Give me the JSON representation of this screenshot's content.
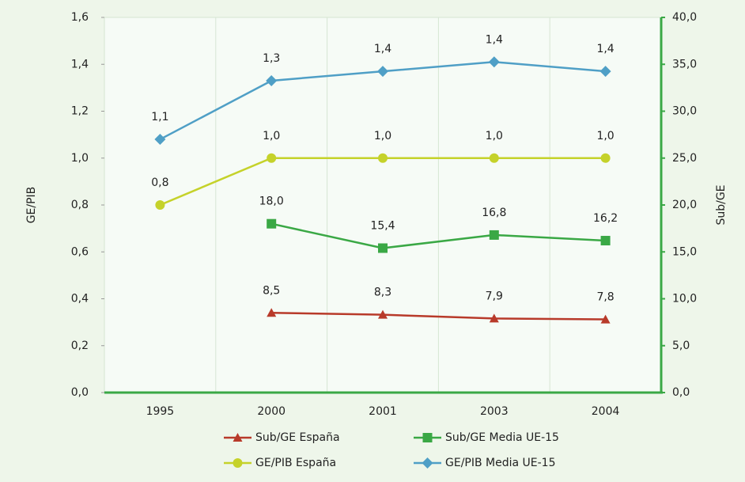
{
  "chart_data": {
    "type": "line",
    "categories": [
      "1995",
      "2000",
      "2001",
      "2003",
      "2004"
    ],
    "ylabel": "GE/PIB",
    "y2label": "Sub/GE",
    "ylim": [
      0,
      1.6
    ],
    "yticks": [
      {
        "value": 0,
        "label": "0,0"
      },
      {
        "value": 0.2,
        "label": "0,2"
      },
      {
        "value": 0.4,
        "label": "0,4"
      },
      {
        "value": 0.6,
        "label": "0,6"
      },
      {
        "value": 0.8,
        "label": "0,8"
      },
      {
        "value": 1.0,
        "label": "1,0"
      },
      {
        "value": 1.2,
        "label": "1,2"
      },
      {
        "value": 1.4,
        "label": "1,4"
      },
      {
        "value": 1.6,
        "label": "1,6"
      }
    ],
    "y2lim": [
      0,
      40
    ],
    "y2ticks": [
      {
        "value": 0,
        "label": "0,0"
      },
      {
        "value": 5,
        "label": "5,0"
      },
      {
        "value": 10,
        "label": "10,0"
      },
      {
        "value": 15,
        "label": "15,0"
      },
      {
        "value": 20,
        "label": "20,0"
      },
      {
        "value": 25,
        "label": "25,0"
      },
      {
        "value": 30,
        "label": "30,0"
      },
      {
        "value": 35,
        "label": "35,0"
      },
      {
        "value": 40,
        "label": "40,0"
      }
    ],
    "series": [
      {
        "name": "Sub/GE España",
        "color": "#b83a2a",
        "marker": "triangle",
        "axis": "y2",
        "values": [
          null,
          8.5,
          8.3,
          7.9,
          7.8
        ],
        "value_labels": [
          null,
          "8,5",
          "8,3",
          "7,9",
          "7,8"
        ]
      },
      {
        "name": "Sub/GE Media UE-15",
        "color": "#3aa845",
        "marker": "square",
        "axis": "y2",
        "values": [
          null,
          18.0,
          15.4,
          16.8,
          16.2
        ],
        "value_labels": [
          null,
          "18,0",
          "15,4",
          "16,8",
          "16,2"
        ]
      },
      {
        "name": "GE/PIB España",
        "color": "#c5d22a",
        "marker": "circle",
        "values": [
          0.8,
          1.0,
          1.0,
          1.0,
          1.0
        ],
        "value_labels": [
          "0,8",
          "1,0",
          "1,0",
          "1,0",
          "1,0"
        ]
      },
      {
        "name": "GE/PIB Media UE-15",
        "color": "#4f9fc6",
        "marker": "diamond",
        "values": [
          1.08,
          1.33,
          1.37,
          1.41,
          1.37
        ],
        "value_labels": [
          "1,1",
          "1,3",
          "1,4",
          "1,4",
          "1,4"
        ]
      }
    ]
  }
}
